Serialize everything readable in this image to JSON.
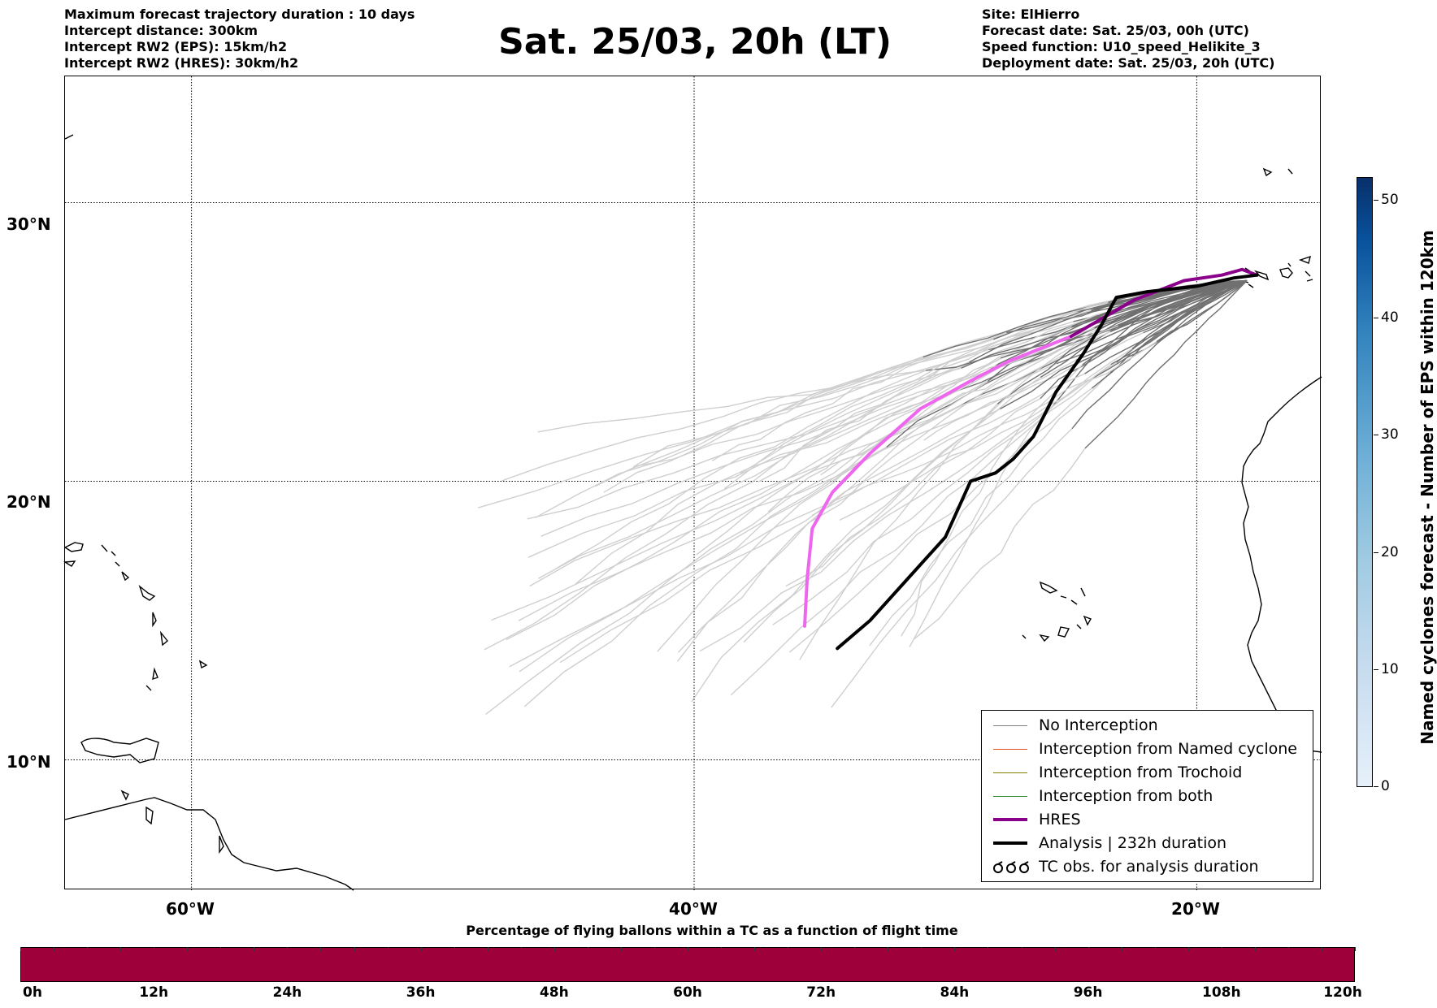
{
  "header": {
    "info_left": [
      "Maximum forecast trajectory duration : 10 days",
      "Intercept distance: 300km",
      "Intercept RW2 (EPS):  15km/h2",
      "Intercept RW2 (HRES): 30km/h2"
    ],
    "title": "Sat. 25/03, 20h (LT)",
    "info_right": [
      "Site: ElHierro",
      "Forecast date: Sat. 25/03, 00h (UTC)",
      "Speed function: U10_speed_Helikite_3",
      "Deployment date: Sat. 25/03, 20h (UTC)"
    ]
  },
  "map": {
    "lon_range": [
      -65,
      -15
    ],
    "lat_range": [
      5,
      35
    ],
    "grid": "dotted",
    "lat_labels": [
      {
        "label": "30°N",
        "value": 30
      },
      {
        "label": "20°N",
        "value": 20
      },
      {
        "label": "10°N",
        "value": 10
      }
    ],
    "lon_labels": [
      {
        "label": "60°W",
        "value": -60
      },
      {
        "label": "40°W",
        "value": -40
      },
      {
        "label": "20°W",
        "value": -20
      }
    ]
  },
  "legend": {
    "entries": [
      {
        "label": "No Interception",
        "color": "#808080",
        "style": "thin"
      },
      {
        "label": "Interception from Named cyclone",
        "color": "#e8531f",
        "style": "thin"
      },
      {
        "label": "Interception from Trochoid",
        "color": "#808000",
        "style": "thin"
      },
      {
        "label": "Interception from both",
        "color": "#2e8b2e",
        "style": "thin"
      },
      {
        "label": "HRES",
        "color": "#8b008b",
        "style": "thick"
      },
      {
        "label": "Analysis | 232h duration",
        "color": "#000000",
        "style": "thick"
      },
      {
        "label": "TC obs. for analysis duration",
        "color": "#000000",
        "style": "symbol"
      }
    ]
  },
  "colorbar": {
    "title": "Named cyclones forecast - Number of EPS within 120km",
    "ticks": [
      "0",
      "10",
      "20",
      "30",
      "40",
      "50"
    ],
    "max": 52
  },
  "percent_bar": {
    "title": "Percentage of flying ballons within a TC as a function of flight time",
    "ticks": [
      "0h",
      "12h",
      "24h",
      "36h",
      "48h",
      "60h",
      "72h",
      "84h",
      "96h",
      "108h",
      "120h"
    ],
    "color": "#9e003a"
  },
  "trajectories": {
    "hres": [
      [
        -17.6,
        27.4
      ],
      [
        -18.2,
        27.6
      ],
      [
        -19.0,
        27.4
      ],
      [
        -20.5,
        27.2
      ],
      [
        -22.5,
        26.5
      ],
      [
        -25.0,
        25.2
      ],
      [
        -27.5,
        24.3
      ],
      [
        -29.0,
        23.6
      ],
      [
        -31.0,
        22.6
      ],
      [
        -33.0,
        21.0
      ],
      [
        -34.5,
        19.6
      ],
      [
        -35.3,
        18.3
      ],
      [
        -35.5,
        16.5
      ],
      [
        -35.6,
        14.8
      ]
    ],
    "hres_segment_split": 5,
    "analysis": [
      [
        -17.6,
        27.4
      ],
      [
        -18.5,
        27.3
      ],
      [
        -20.0,
        27.0
      ],
      [
        -22.0,
        26.8
      ],
      [
        -23.2,
        26.6
      ],
      [
        -23.8,
        25.6
      ],
      [
        -24.5,
        24.6
      ],
      [
        -25.6,
        23.2
      ],
      [
        -26.5,
        21.6
      ],
      [
        -27.3,
        20.8
      ],
      [
        -28.0,
        20.3
      ],
      [
        -29.0,
        20.0
      ],
      [
        -30.0,
        18.0
      ],
      [
        -31.5,
        16.5
      ],
      [
        -33.0,
        15.0
      ],
      [
        -34.3,
        14.0
      ]
    ]
  }
}
